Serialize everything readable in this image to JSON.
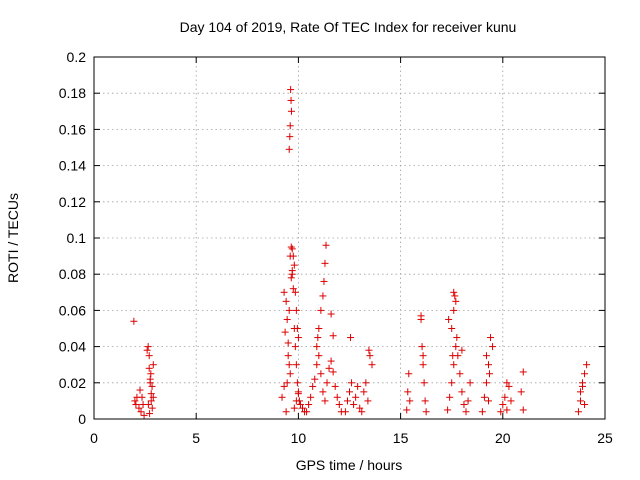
{
  "chart_data": {
    "type": "scatter",
    "title": "Day 104 of 2019, Rate Of TEC Index for receiver kunu",
    "xlabel": "GPS time / hours",
    "ylabel": "ROTI / TECUs",
    "xlim": [
      0,
      25
    ],
    "ylim": [
      0,
      0.2
    ],
    "x_ticks": [
      "0",
      "5",
      "10",
      "15",
      "20",
      "25"
    ],
    "y_ticks": [
      "0",
      "0.02",
      "0.04",
      "0.06",
      "0.08",
      "0.1",
      "0.12",
      "0.14",
      "0.16",
      "0.18",
      "0.2"
    ],
    "grid": true,
    "marker": "plus",
    "color": "#dd0000",
    "series": [
      {
        "x": [
          1.95,
          2.0,
          2.05,
          2.1,
          2.2,
          2.25,
          2.3,
          2.35,
          2.4,
          2.45,
          2.6,
          2.65,
          2.7,
          2.75,
          2.8,
          2.85,
          2.9,
          2.7,
          2.75,
          2.8,
          2.72,
          2.78,
          2.84,
          2.66,
          2.9,
          9.2,
          9.3,
          9.4,
          9.45,
          9.5,
          9.55,
          9.6,
          9.65,
          9.7,
          9.75,
          9.8,
          9.85,
          9.9,
          9.95,
          10.0,
          10.05,
          10.1,
          10.2,
          10.3,
          9.62,
          9.64,
          9.66,
          9.6,
          9.58,
          9.55,
          9.7,
          9.75,
          9.8,
          9.85,
          9.9,
          9.95,
          10.0,
          9.4,
          9.45,
          9.5,
          9.55,
          9.6,
          9.35,
          9.3,
          9.8,
          9.9,
          10.0,
          9.65,
          9.7,
          10.4,
          10.5,
          10.6,
          10.7,
          10.8,
          10.9,
          11.0,
          11.1,
          11.2,
          11.3,
          11.4,
          11.5,
          11.6,
          11.7,
          11.8,
          11.9,
          12.0,
          12.1,
          11.35,
          11.3,
          11.25,
          11.2,
          11.1,
          11.0,
          10.95,
          10.9,
          11.6,
          11.7,
          12.3,
          12.4,
          12.5,
          12.6,
          12.7,
          12.8,
          12.9,
          13.0,
          13.1,
          13.2,
          13.3,
          13.4,
          13.5,
          13.6,
          12.55,
          13.45,
          15.3,
          15.35,
          15.4,
          15.45,
          16.0,
          16.05,
          16.1,
          16.15,
          16.2,
          16.25,
          16.0,
          16.1,
          17.3,
          17.4,
          17.5,
          17.6,
          17.7,
          17.8,
          17.9,
          18.0,
          18.1,
          18.2,
          18.3,
          18.4,
          17.35,
          17.5,
          17.6,
          17.65,
          17.7,
          17.75,
          17.6,
          17.55,
          18.0,
          19.0,
          19.1,
          19.2,
          19.3,
          19.4,
          19.5,
          19.3,
          19.2,
          19.35,
          19.9,
          20.0,
          20.1,
          20.2,
          20.3,
          20.4,
          20.2,
          20.9,
          21.0,
          21.0,
          23.7,
          23.8,
          23.9,
          24.0,
          24.1,
          23.8,
          23.9,
          24.0
        ],
        "y": [
          0.054,
          0.01,
          0.008,
          0.012,
          0.006,
          0.016,
          0.004,
          0.012,
          0.008,
          0.002,
          0.038,
          0.04,
          0.028,
          0.02,
          0.014,
          0.006,
          0.03,
          0.035,
          0.022,
          0.01,
          0.003,
          0.025,
          0.018,
          0.008,
          0.012,
          0.012,
          0.018,
          0.004,
          0.02,
          0.035,
          0.06,
          0.09,
          0.095,
          0.082,
          0.072,
          0.05,
          0.04,
          0.03,
          0.02,
          0.015,
          0.01,
          0.008,
          0.006,
          0.004,
          0.182,
          0.176,
          0.17,
          0.162,
          0.156,
          0.149,
          0.094,
          0.09,
          0.085,
          0.07,
          0.06,
          0.05,
          0.045,
          0.065,
          0.055,
          0.042,
          0.03,
          0.025,
          0.048,
          0.07,
          0.006,
          0.01,
          0.014,
          0.078,
          0.08,
          0.004,
          0.008,
          0.012,
          0.018,
          0.022,
          0.03,
          0.035,
          0.025,
          0.015,
          0.01,
          0.02,
          0.028,
          0.032,
          0.026,
          0.018,
          0.012,
          0.008,
          0.004,
          0.096,
          0.086,
          0.076,
          0.068,
          0.06,
          0.05,
          0.045,
          0.04,
          0.058,
          0.046,
          0.004,
          0.01,
          0.015,
          0.02,
          0.008,
          0.012,
          0.018,
          0.006,
          0.004,
          0.015,
          0.02,
          0.01,
          0.035,
          0.03,
          0.045,
          0.038,
          0.005,
          0.015,
          0.025,
          0.01,
          0.055,
          0.04,
          0.03,
          0.02,
          0.01,
          0.004,
          0.057,
          0.035,
          0.005,
          0.012,
          0.02,
          0.03,
          0.04,
          0.035,
          0.025,
          0.015,
          0.008,
          0.004,
          0.01,
          0.02,
          0.055,
          0.05,
          0.06,
          0.068,
          0.065,
          0.045,
          0.07,
          0.035,
          0.038,
          0.004,
          0.012,
          0.02,
          0.03,
          0.045,
          0.04,
          0.01,
          0.035,
          0.025,
          0.004,
          0.008,
          0.012,
          0.02,
          0.018,
          0.01,
          0.005,
          0.015,
          0.026,
          0.005,
          0.004,
          0.01,
          0.018,
          0.025,
          0.03,
          0.015,
          0.02,
          0.008
        ]
      }
    ]
  }
}
